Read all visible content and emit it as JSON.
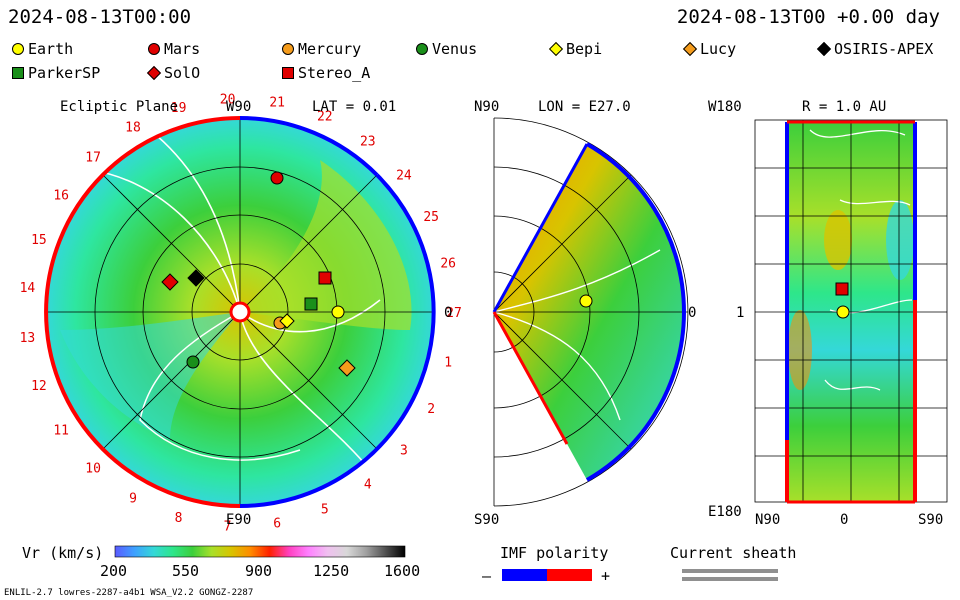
{
  "header": {
    "left_time": "2024-08-13T00:00",
    "right_time": "2024-08-13T00 +0.00 day"
  },
  "bodies": [
    {
      "name": "Earth",
      "shape": "circle",
      "color": "#ffff00"
    },
    {
      "name": "Mars",
      "shape": "circle",
      "color": "#e00000"
    },
    {
      "name": "Mercury",
      "shape": "circle",
      "color": "#f59c1c"
    },
    {
      "name": "Venus",
      "shape": "circle",
      "color": "#1a8f1a"
    },
    {
      "name": "Bepi",
      "shape": "diamond",
      "color": "#ffff00"
    },
    {
      "name": "Lucy",
      "shape": "diamond",
      "color": "#f59c1c"
    },
    {
      "name": "OSIRIS-APEX",
      "shape": "diamond",
      "color": "#000000"
    },
    {
      "name": "ParkerSP",
      "shape": "square",
      "color": "#1a8f1a"
    },
    {
      "name": "SolO",
      "shape": "diamond",
      "color": "#e00000"
    },
    {
      "name": "Stereo_A",
      "shape": "square",
      "color": "#e00000"
    }
  ],
  "ecliptic": {
    "title": "Ecliptic Plane",
    "lat_label": "LAT = 0.01",
    "top_label": "W90",
    "bottom_label": "E90",
    "right_label": "0",
    "ring_numbers": [
      "1",
      "2",
      "3",
      "4",
      "5",
      "6",
      "7",
      "8",
      "9",
      "10",
      "11",
      "12",
      "13",
      "14",
      "15",
      "16",
      "17",
      "18",
      "19",
      "20",
      "21",
      "22",
      "23",
      "24",
      "25",
      "26",
      "27"
    ]
  },
  "meridional": {
    "lon_label": "LON = E27.0",
    "top_label": "N90",
    "bottom_label": "S90",
    "right_label": "0"
  },
  "radial": {
    "title": "R = 1.0 AU",
    "top_left": "W180",
    "bottom_left": "E180",
    "mid_left": "1",
    "bottom_axis": [
      "N90",
      "0",
      "S90"
    ]
  },
  "colorbar": {
    "label": "Vr (km/s)",
    "ticks": [
      "200",
      "550",
      "900",
      "1250",
      "1600"
    ],
    "stops": [
      "#5a5aff",
      "#3ea0ff",
      "#34d8d8",
      "#2ee68a",
      "#3ccf3c",
      "#a8e02a",
      "#d8c400",
      "#ff8c00",
      "#ff2000",
      "#ff40c0",
      "#ff80ff",
      "#f0c0f0",
      "#d8d8d8",
      "#a0a0a0",
      "#505050",
      "#000000"
    ]
  },
  "imf": {
    "label": "IMF polarity",
    "minus": "–",
    "plus": "+",
    "neg_color": "#0000ff",
    "pos_color": "#ff0000"
  },
  "sheath": {
    "label": "Current sheath"
  },
  "footer": {
    "left": "ENLIL-2.7 lowres-2287-a4b1 WSA_V2.2 GONGZ-2287"
  }
}
